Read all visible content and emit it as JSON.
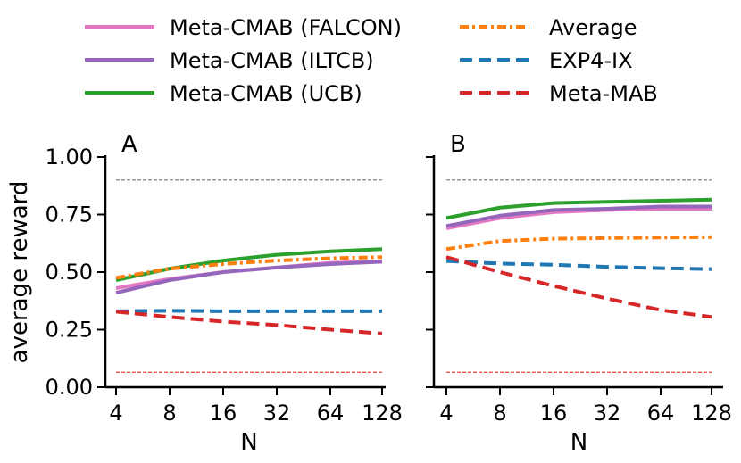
{
  "chart_data": [
    {
      "type": "line",
      "title": "A",
      "xlabel": "N",
      "ylabel": "average reward",
      "ylim": [
        0.0,
        1.0
      ],
      "yticks": [
        "0.00",
        "0.25",
        "0.50",
        "0.75",
        "1.00"
      ],
      "x": [
        "4",
        "8",
        "16",
        "32",
        "64",
        "128"
      ],
      "reference_lines": [
        {
          "value": 0.9,
          "color": "#777777"
        },
        {
          "value": 0.065,
          "color": "#e8413a"
        }
      ],
      "series": [
        {
          "name": "Meta-CMAB (FALCON)",
          "values": [
            0.43,
            0.47,
            0.5,
            0.52,
            0.54,
            0.545
          ]
        },
        {
          "name": "Meta-CMAB (ILTCB)",
          "values": [
            0.41,
            0.465,
            0.5,
            0.52,
            0.535,
            0.545
          ]
        },
        {
          "name": "Meta-CMAB (UCB)",
          "values": [
            0.465,
            0.515,
            0.55,
            0.575,
            0.59,
            0.6
          ]
        },
        {
          "name": "Average",
          "values": [
            0.475,
            0.515,
            0.535,
            0.55,
            0.56,
            0.565
          ]
        },
        {
          "name": "EXP4-IX",
          "values": [
            0.33,
            0.332,
            0.33,
            0.33,
            0.33,
            0.33
          ]
        },
        {
          "name": "Meta-MAB",
          "values": [
            0.328,
            0.305,
            0.285,
            0.27,
            0.25,
            0.233
          ]
        }
      ]
    },
    {
      "type": "line",
      "title": "B",
      "xlabel": "N",
      "ylabel": "",
      "ylim": [
        0.0,
        1.0
      ],
      "x": [
        "4",
        "8",
        "16",
        "32",
        "64",
        "128"
      ],
      "reference_lines": [
        {
          "value": 0.9,
          "color": "#777777"
        },
        {
          "value": 0.065,
          "color": "#e8413a"
        }
      ],
      "series": [
        {
          "name": "Meta-CMAB (FALCON)",
          "values": [
            0.69,
            0.735,
            0.76,
            0.77,
            0.775,
            0.775
          ]
        },
        {
          "name": "Meta-CMAB (ILTCB)",
          "values": [
            0.7,
            0.745,
            0.77,
            0.775,
            0.785,
            0.785
          ]
        },
        {
          "name": "Meta-CMAB (UCB)",
          "values": [
            0.735,
            0.78,
            0.8,
            0.805,
            0.81,
            0.815
          ]
        },
        {
          "name": "Average",
          "values": [
            0.6,
            0.635,
            0.645,
            0.648,
            0.65,
            0.652
          ]
        },
        {
          "name": "EXP4-IX",
          "values": [
            0.548,
            0.537,
            0.532,
            0.523,
            0.517,
            0.513
          ]
        },
        {
          "name": "Meta-MAB",
          "values": [
            0.565,
            0.5,
            0.44,
            0.385,
            0.335,
            0.305
          ]
        }
      ]
    }
  ],
  "legend": [
    {
      "label": "Meta-CMAB (FALCON)",
      "color": "#e377c2",
      "dash": "solid"
    },
    {
      "label": "Meta-CMAB (ILTCB)",
      "color": "#9467bd",
      "dash": "solid"
    },
    {
      "label": "Meta-CMAB (UCB)",
      "color": "#2ca02c",
      "dash": "solid"
    },
    {
      "label": "Average",
      "color": "#ff7f0e",
      "dash": "dashdot"
    },
    {
      "label": "EXP4-IX",
      "color": "#1f77b4",
      "dash": "dashed"
    },
    {
      "label": "Meta-MAB",
      "color": "#d62728",
      "dash": "dashed"
    }
  ]
}
